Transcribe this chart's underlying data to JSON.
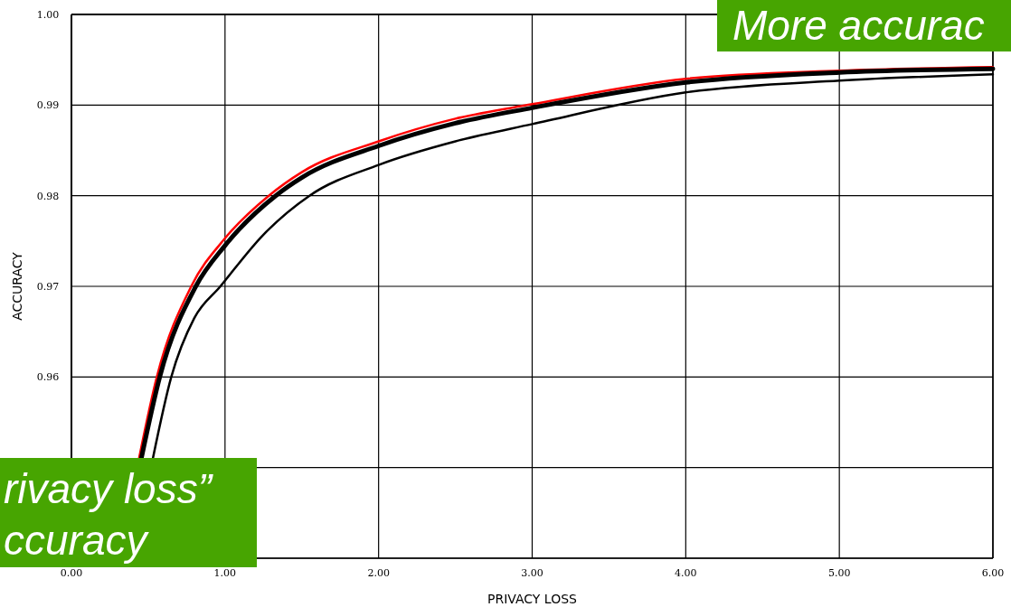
{
  "chart_data": {
    "type": "line",
    "xlabel": "PRIVACY LOSS",
    "ylabel": "ACCURACY",
    "xlim": [
      0,
      6
    ],
    "xticks": [
      {
        "value": 0,
        "label": "0.00"
      },
      {
        "value": 1,
        "label": "1.00"
      },
      {
        "value": 2,
        "label": "2.00"
      },
      {
        "value": 3,
        "label": "3.00"
      },
      {
        "value": 4,
        "label": "4.00"
      },
      {
        "value": 5,
        "label": "5.00"
      },
      {
        "value": 6,
        "label": "6.00"
      }
    ],
    "ylim": [
      0.94,
      1.0
    ],
    "yticks": [
      {
        "value": 0.94,
        "label": null
      },
      {
        "value": 0.95,
        "label": null
      },
      {
        "value": 0.96,
        "label": "0.96"
      },
      {
        "value": 0.97,
        "label": "0.97"
      },
      {
        "value": 0.98,
        "label": "0.98"
      },
      {
        "value": 0.99,
        "label": "0.99"
      },
      {
        "value": 1.0,
        "label": "1.00"
      }
    ],
    "grid": true,
    "marker": "none",
    "line_style": "solid",
    "series": [
      {
        "color": "#ff0000",
        "x": [
          0.44,
          0.556,
          0.78,
          1.0,
          1.285,
          1.5,
          2,
          2.5,
          3,
          4,
          5,
          6
        ],
        "values": [
          0.951,
          0.96,
          0.97,
          0.9753,
          0.98,
          0.9826,
          0.986,
          0.9885,
          0.9901,
          0.9929,
          0.9938,
          0.9942
        ]
      },
      {
        "color": "#000000",
        "x": [
          0.455,
          0.575,
          0.81,
          1.0,
          1.33,
          1.5,
          2,
          2.5,
          3,
          4,
          5,
          6
        ],
        "values": [
          0.951,
          0.96,
          0.97,
          0.9745,
          0.98,
          0.982,
          0.9855,
          0.988,
          0.9897,
          0.9925,
          0.9936,
          0.994
        ]
      },
      {
        "color": "#000000",
        "x": [
          0.53,
          0.65,
          0.8,
          0.97,
          1.25,
          1.55,
          2,
          2.5,
          3,
          4,
          5,
          6
        ],
        "values": [
          0.951,
          0.96,
          0.9665,
          0.97,
          0.9757,
          0.98,
          0.9834,
          0.986,
          0.9879,
          0.9914,
          0.9927,
          0.9934
        ]
      }
    ],
    "annotations": [
      "More accurac",
      "rivacy loss”",
      "ccuracy"
    ]
  }
}
